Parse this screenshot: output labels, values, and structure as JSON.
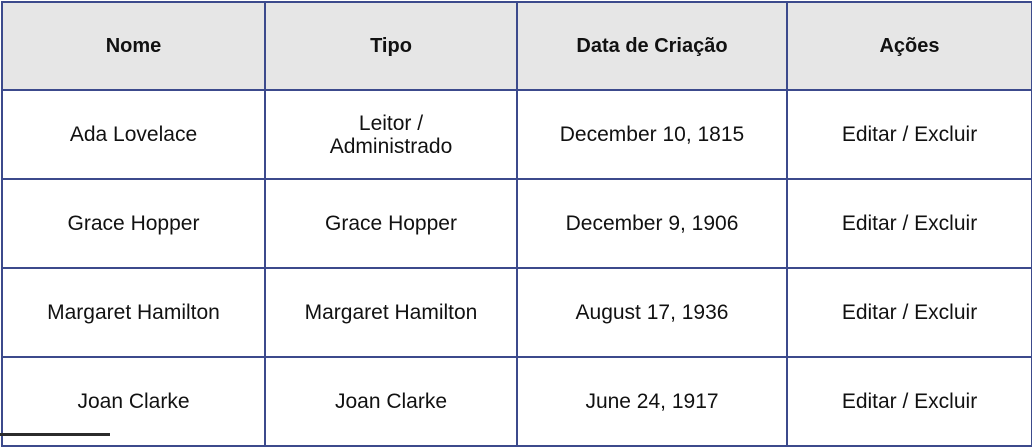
{
  "table": {
    "headers": [
      "Nome",
      "Tipo",
      "Data de Criação",
      "Ações"
    ],
    "rows": [
      {
        "nome": "Ada Lovelace",
        "tipo": "Leitor / Administrado",
        "data": "December 10, 1815",
        "acoes": "Editar / Excluir"
      },
      {
        "nome": "Grace Hopper",
        "tipo": "Grace Hopper",
        "data": "December 9, 1906",
        "acoes": "Editar / Excluir"
      },
      {
        "nome": "Margaret Hamilton",
        "tipo": "Margaret Hamilton",
        "data": "August 17, 1936",
        "acoes": "Editar / Excluir"
      },
      {
        "nome": "Joan Clarke",
        "tipo": "Joan Clarke",
        "data": "June 24, 1917",
        "acoes": "Editar / Excluir"
      }
    ]
  },
  "colors": {
    "border": "#3c4a8c",
    "header_bg": "#e6e6e6",
    "text": "#111111"
  }
}
